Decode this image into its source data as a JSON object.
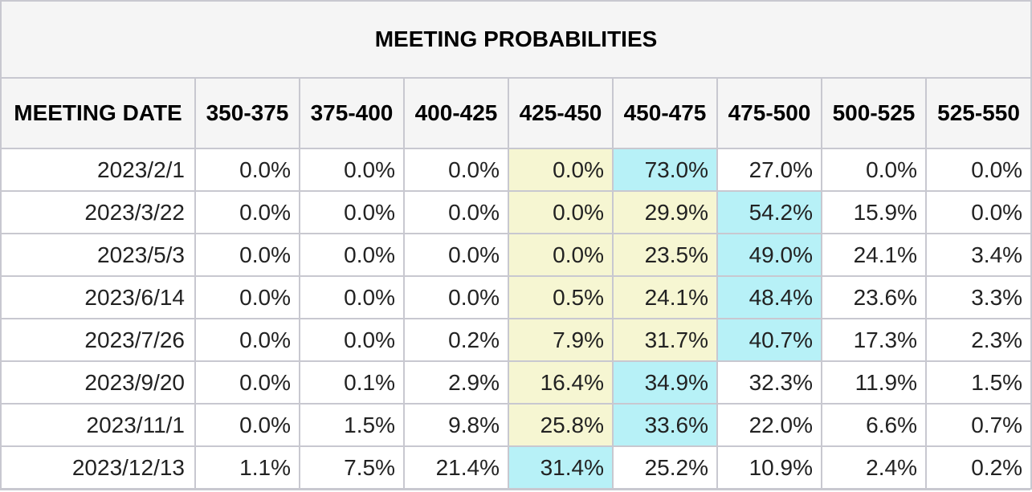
{
  "title": "MEETING PROBABILITIES",
  "columns": [
    "MEETING DATE",
    "350-375",
    "375-400",
    "400-425",
    "425-450",
    "450-475",
    "475-500",
    "500-525",
    "525-550"
  ],
  "rows": [
    {
      "date": "2023/2/1",
      "values": [
        "0.0%",
        "0.0%",
        "0.0%",
        "0.0%",
        "73.0%",
        "27.0%",
        "0.0%",
        "0.0%"
      ],
      "highlights": [
        "",
        "",
        "",
        "yellow",
        "cyan",
        "",
        "",
        ""
      ]
    },
    {
      "date": "2023/3/22",
      "values": [
        "0.0%",
        "0.0%",
        "0.0%",
        "0.0%",
        "29.9%",
        "54.2%",
        "15.9%",
        "0.0%"
      ],
      "highlights": [
        "",
        "",
        "",
        "yellow",
        "yellow",
        "cyan",
        "",
        ""
      ]
    },
    {
      "date": "2023/5/3",
      "values": [
        "0.0%",
        "0.0%",
        "0.0%",
        "0.0%",
        "23.5%",
        "49.0%",
        "24.1%",
        "3.4%"
      ],
      "highlights": [
        "",
        "",
        "",
        "yellow",
        "yellow",
        "cyan",
        "",
        ""
      ]
    },
    {
      "date": "2023/6/14",
      "values": [
        "0.0%",
        "0.0%",
        "0.0%",
        "0.5%",
        "24.1%",
        "48.4%",
        "23.6%",
        "3.3%"
      ],
      "highlights": [
        "",
        "",
        "",
        "yellow",
        "yellow",
        "cyan",
        "",
        ""
      ]
    },
    {
      "date": "2023/7/26",
      "values": [
        "0.0%",
        "0.0%",
        "0.2%",
        "7.9%",
        "31.7%",
        "40.7%",
        "17.3%",
        "2.3%"
      ],
      "highlights": [
        "",
        "",
        "",
        "yellow",
        "yellow",
        "cyan",
        "",
        ""
      ]
    },
    {
      "date": "2023/9/20",
      "values": [
        "0.0%",
        "0.1%",
        "2.9%",
        "16.4%",
        "34.9%",
        "32.3%",
        "11.9%",
        "1.5%"
      ],
      "highlights": [
        "",
        "",
        "",
        "yellow",
        "cyan",
        "",
        "",
        ""
      ]
    },
    {
      "date": "2023/11/1",
      "values": [
        "0.0%",
        "1.5%",
        "9.8%",
        "25.8%",
        "33.6%",
        "22.0%",
        "6.6%",
        "0.7%"
      ],
      "highlights": [
        "",
        "",
        "",
        "yellow",
        "cyan",
        "",
        "",
        ""
      ]
    },
    {
      "date": "2023/12/13",
      "values": [
        "1.1%",
        "7.5%",
        "21.4%",
        "31.4%",
        "25.2%",
        "10.9%",
        "2.4%",
        "0.2%"
      ],
      "highlights": [
        "",
        "",
        "",
        "cyan",
        "",
        "",
        "",
        ""
      ]
    }
  ],
  "colors": {
    "highlight_yellow": "#f6f6d2",
    "highlight_cyan": "#b7f1f7",
    "header_bg": "#f5f5f5",
    "border": "#c8c8d0"
  }
}
